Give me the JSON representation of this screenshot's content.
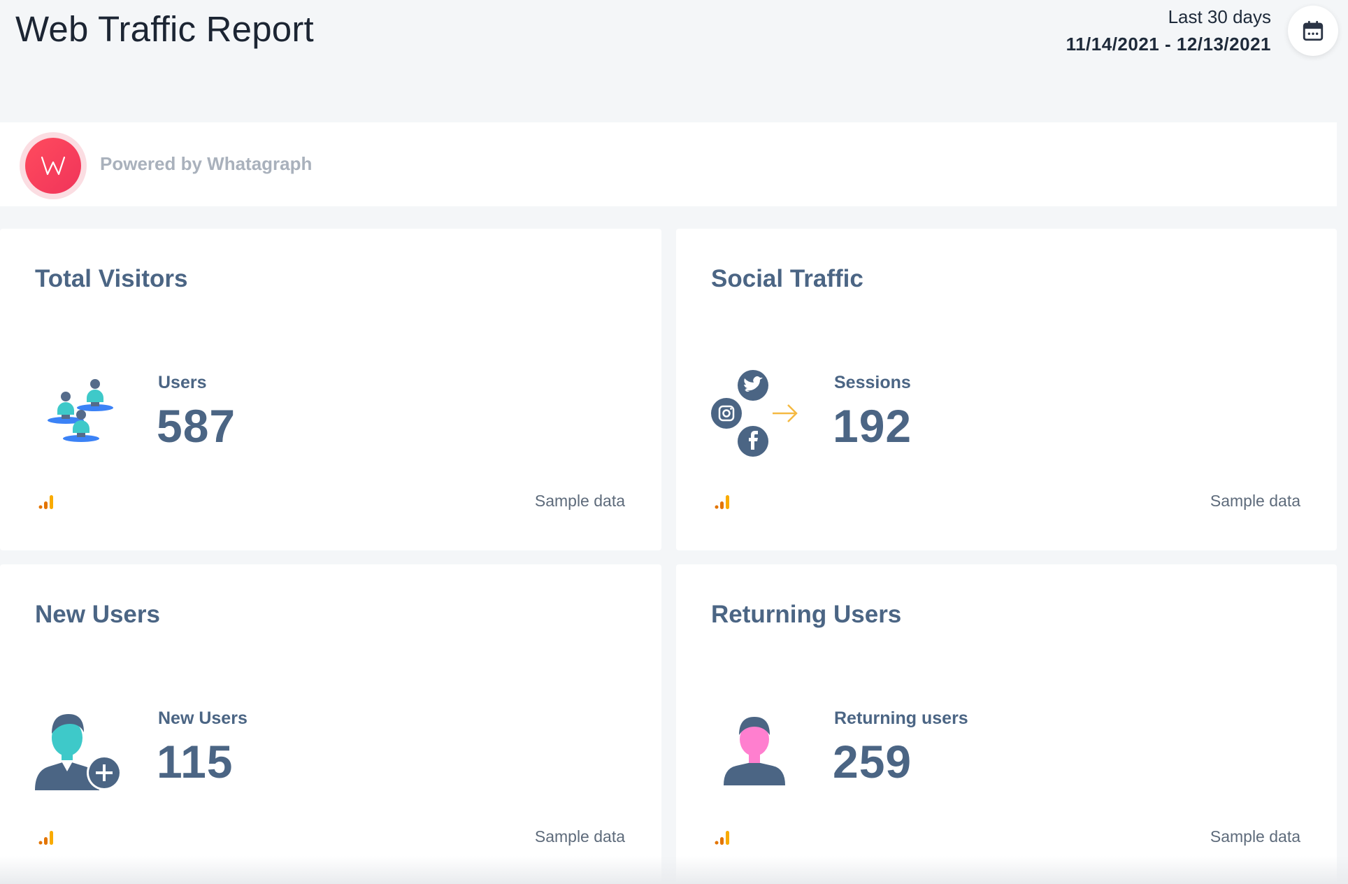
{
  "header": {
    "title": "Web Traffic Report",
    "date_range_label": "Last 30 days",
    "date_range": "11/14/2021 - 12/13/2021"
  },
  "branding": {
    "logo_letter": "W",
    "powered_by": "Powered by Whatagraph"
  },
  "cards": [
    {
      "title": "Total Visitors",
      "metric_label": "Users",
      "metric_value": "587",
      "footer": "Sample data",
      "icon": "users-group-icon"
    },
    {
      "title": "Social Traffic",
      "metric_label": "Sessions",
      "metric_value": "192",
      "footer": "Sample data",
      "icon": "social-networks-icon"
    },
    {
      "title": "New Users",
      "metric_label": "New Users",
      "metric_value": "115",
      "footer": "Sample data",
      "icon": "add-user-icon"
    },
    {
      "title": "Returning Users",
      "metric_label": "Returning users",
      "metric_value": "259",
      "footer": "Sample data",
      "icon": "returning-user-icon"
    }
  ],
  "colors": {
    "accent": "#4b6584",
    "brand": "#f0345a",
    "teal": "#3ec9c9",
    "pink": "#ff7fcf",
    "arrow": "#f5b942",
    "analytics_orange": "#f9ab00",
    "analytics_dark": "#e37400"
  }
}
